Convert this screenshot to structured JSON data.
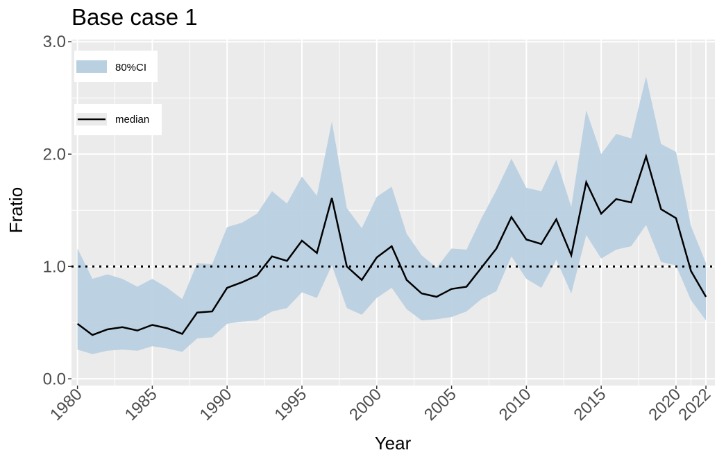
{
  "chart_data": {
    "type": "line",
    "title": "Base case 1",
    "x_label": "Year",
    "y_label": "Fratio",
    "x": [
      1980,
      1981,
      1982,
      1983,
      1984,
      1985,
      1986,
      1987,
      1988,
      1989,
      1990,
      1991,
      1992,
      1993,
      1994,
      1995,
      1996,
      1997,
      1998,
      1999,
      2000,
      2001,
      2002,
      2003,
      2004,
      2005,
      2006,
      2007,
      2008,
      2009,
      2010,
      2011,
      2012,
      2013,
      2014,
      2015,
      2016,
      2017,
      2018,
      2019,
      2020,
      2021,
      2022
    ],
    "series": [
      {
        "name": "80%CI",
        "color": "#b9d0e1",
        "lower": [
          0.26,
          0.22,
          0.25,
          0.26,
          0.25,
          0.29,
          0.27,
          0.24,
          0.36,
          0.37,
          0.49,
          0.51,
          0.52,
          0.6,
          0.63,
          0.77,
          0.72,
          1.01,
          0.63,
          0.57,
          0.72,
          0.81,
          0.62,
          0.52,
          0.53,
          0.55,
          0.6,
          0.71,
          0.78,
          1.09,
          0.89,
          0.81,
          1.06,
          0.76,
          1.28,
          1.07,
          1.15,
          1.18,
          1.37,
          1.04,
          1.01,
          0.7,
          0.52
        ],
        "upper": [
          1.16,
          0.89,
          0.93,
          0.89,
          0.82,
          0.89,
          0.81,
          0.71,
          1.03,
          1.02,
          1.35,
          1.39,
          1.47,
          1.67,
          1.56,
          1.8,
          1.63,
          2.29,
          1.52,
          1.34,
          1.62,
          1.71,
          1.29,
          1.1,
          0.99,
          1.16,
          1.15,
          1.43,
          1.68,
          1.96,
          1.7,
          1.67,
          1.95,
          1.53,
          2.39,
          2.0,
          2.18,
          2.14,
          2.69,
          2.09,
          2.02,
          1.36,
          1.03
        ]
      },
      {
        "name": "median",
        "color": "#000000",
        "values": [
          0.49,
          0.39,
          0.44,
          0.46,
          0.43,
          0.48,
          0.45,
          0.4,
          0.59,
          0.6,
          0.81,
          0.86,
          0.92,
          1.09,
          1.05,
          1.23,
          1.12,
          1.61,
          1.0,
          0.88,
          1.08,
          1.18,
          0.88,
          0.76,
          0.73,
          0.8,
          0.82,
          0.99,
          1.16,
          1.44,
          1.24,
          1.2,
          1.42,
          1.1,
          1.75,
          1.47,
          1.6,
          1.57,
          1.98,
          1.51,
          1.43,
          0.96,
          0.73
        ]
      }
    ],
    "hline": 1,
    "xlim": [
      1979.6,
      2022.6
    ],
    "ylim": [
      -0.06,
      3.02
    ],
    "xticks": [
      1980,
      1985,
      1990,
      1995,
      2000,
      2005,
      2010,
      2015,
      2020,
      2022
    ],
    "yticks": [
      {
        "value": 0,
        "label": "0.0"
      },
      {
        "value": 1,
        "label": "1.0"
      },
      {
        "value": 2,
        "label": "2.0"
      },
      {
        "value": 3,
        "label": "3.0"
      }
    ],
    "xminor": [
      1982.5,
      1987.5,
      1992.5,
      1997.5,
      2002.5,
      2007.5,
      2012.5,
      2017.5,
      2021
    ],
    "yminor": [
      0.5,
      1.5,
      2.5
    ],
    "grid": true
  }
}
